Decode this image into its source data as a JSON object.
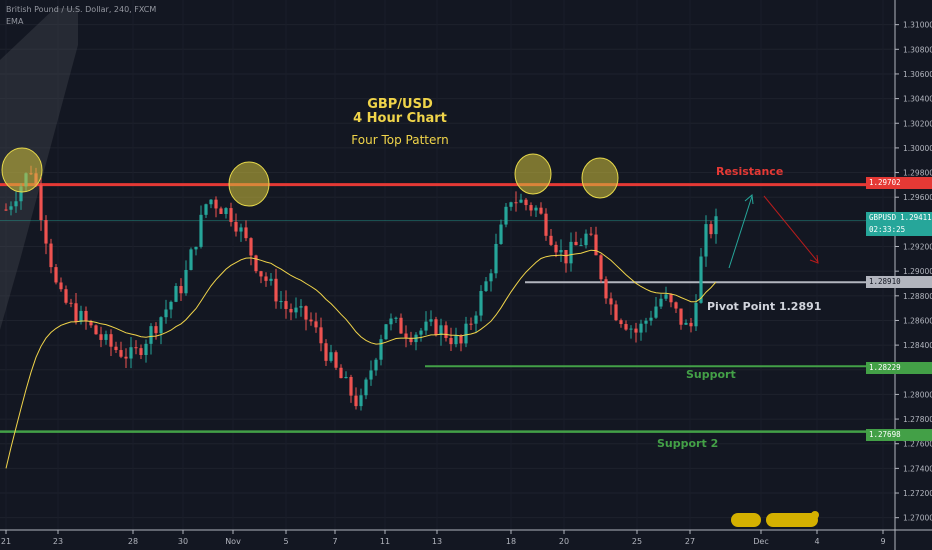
{
  "header": {
    "symbol_line": "British Pound / U.S. Dollar, 240, FXCM",
    "indicator": "EMA"
  },
  "annotations": {
    "title_line1": "GBP/USD",
    "title_line2": "4 Hour Chart",
    "subtitle": "Four Top Pattern",
    "resistance": "Resistance",
    "pivot": "Pivot Point 1.2891",
    "support": "Support",
    "support2": "Support 2"
  },
  "price_tags": {
    "resistance_value": "1.29702",
    "last_symbol": "GBPUSD",
    "last_value": "1.29411",
    "countdown": "02:33:25",
    "pivot_value": "1.28910",
    "support_value": "1.28229",
    "support2_value": "1.27698"
  },
  "colors": {
    "background": "#131722",
    "bull": "#26a69a",
    "bear": "#ef5350",
    "resistance": "#e53935",
    "support": "#43a047",
    "pivot": "#b2b5be",
    "ema": "#f0d44a",
    "arrow_up": "#26a69a",
    "arrow_down": "#b71c1c",
    "highlight": "#d4c23c"
  },
  "chart_data": {
    "type": "candlestick",
    "title": "",
    "x_axis": {
      "tick_labels": [
        "21",
        "23",
        "28",
        "30",
        "Nov",
        "5",
        "7",
        "11",
        "13",
        "18",
        "20",
        "25",
        "27",
        "Dec",
        "4",
        "9"
      ]
    },
    "y_axis": {
      "range": [
        1.269,
        1.312
      ],
      "tick_labels": [
        "1.31000",
        "1.30800",
        "1.30600",
        "1.30400",
        "1.30200",
        "1.30000",
        "1.29800",
        "1.29600",
        "1.29400",
        "1.29200",
        "1.29000",
        "1.28800",
        "1.28600",
        "1.28400",
        "1.28200",
        "1.28000",
        "1.27800",
        "1.27600",
        "1.27400",
        "1.27200",
        "1.27000"
      ]
    },
    "levels": [
      {
        "name": "Resistance",
        "value": 1.29702
      },
      {
        "name": "Pivot Point",
        "value": 1.2891
      },
      {
        "name": "Support",
        "value": 1.28229
      },
      {
        "name": "Support 2",
        "value": 1.27698
      }
    ],
    "last_price": 1.29411,
    "anchors": [
      {
        "date": "2019-10-21",
        "price": 1.295
      },
      {
        "date": "2019-10-22",
        "price": 1.2985
      },
      {
        "date": "2019-10-23",
        "price": 1.288
      },
      {
        "date": "2019-10-24",
        "price": 1.286
      },
      {
        "date": "2019-10-25",
        "price": 1.284
      },
      {
        "date": "2019-10-28",
        "price": 1.283
      },
      {
        "date": "2019-10-29",
        "price": 1.286
      },
      {
        "date": "2019-10-30",
        "price": 1.289
      },
      {
        "date": "2019-10-31",
        "price": 1.296
      },
      {
        "date": "2019-11-01",
        "price": 1.2945
      },
      {
        "date": "2019-11-04",
        "price": 1.29
      },
      {
        "date": "2019-11-05",
        "price": 1.287
      },
      {
        "date": "2019-11-06",
        "price": 1.286
      },
      {
        "date": "2019-11-07",
        "price": 1.282
      },
      {
        "date": "2019-11-08",
        "price": 1.279
      },
      {
        "date": "2019-11-11",
        "price": 1.286
      },
      {
        "date": "2019-11-12",
        "price": 1.285
      },
      {
        "date": "2019-11-13",
        "price": 1.2855
      },
      {
        "date": "2019-11-14",
        "price": 1.284
      },
      {
        "date": "2019-11-15",
        "price": 1.289
      },
      {
        "date": "2019-11-18",
        "price": 1.296
      },
      {
        "date": "2019-11-19",
        "price": 1.295
      },
      {
        "date": "2019-11-20",
        "price": 1.291
      },
      {
        "date": "2019-11-21",
        "price": 1.293
      },
      {
        "date": "2019-11-22",
        "price": 1.287
      },
      {
        "date": "2019-11-25",
        "price": 1.285
      },
      {
        "date": "2019-11-26",
        "price": 1.288
      },
      {
        "date": "2019-11-27",
        "price": 1.285
      },
      {
        "date": "2019-11-28",
        "price": 1.293
      },
      {
        "date": "2019-11-29",
        "price": 1.2941
      }
    ]
  }
}
